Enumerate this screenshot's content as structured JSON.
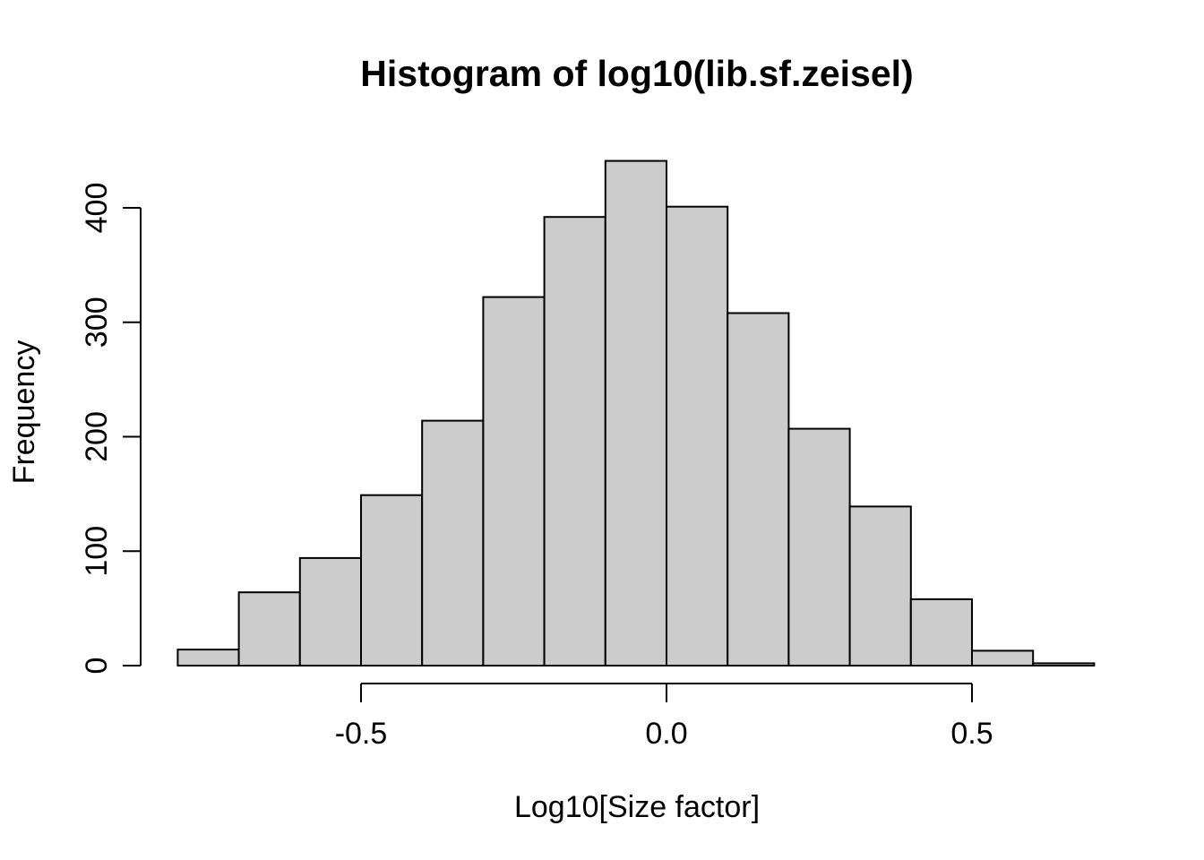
{
  "chart_data": {
    "type": "bar",
    "subtype": "histogram",
    "title": "Histogram of log10(lib.sf.zeisel)",
    "xlabel": "Log10[Size factor]",
    "ylabel": "Frequency",
    "bin_start": -0.8,
    "bin_width": 0.1,
    "counts": [
      14,
      64,
      94,
      149,
      214,
      322,
      392,
      441,
      401,
      308,
      207,
      139,
      58,
      13,
      2
    ],
    "x_ticks": [
      {
        "value": -0.5,
        "label": "-0.5"
      },
      {
        "value": 0.0,
        "label": "0.0"
      },
      {
        "value": 0.5,
        "label": "0.5"
      }
    ],
    "y_ticks": [
      {
        "value": 0,
        "label": "0"
      },
      {
        "value": 100,
        "label": "100"
      },
      {
        "value": 200,
        "label": "200"
      },
      {
        "value": 300,
        "label": "300"
      },
      {
        "value": 400,
        "label": "400"
      }
    ],
    "xlim": [
      -0.8,
      0.7
    ],
    "ylim": [
      0,
      450
    ],
    "grid": "off",
    "legend": "none",
    "bar_fill": "#CCCCCC",
    "bar_stroke": "#000000",
    "axis_color": "#000000",
    "background": "#FFFFFF"
  }
}
